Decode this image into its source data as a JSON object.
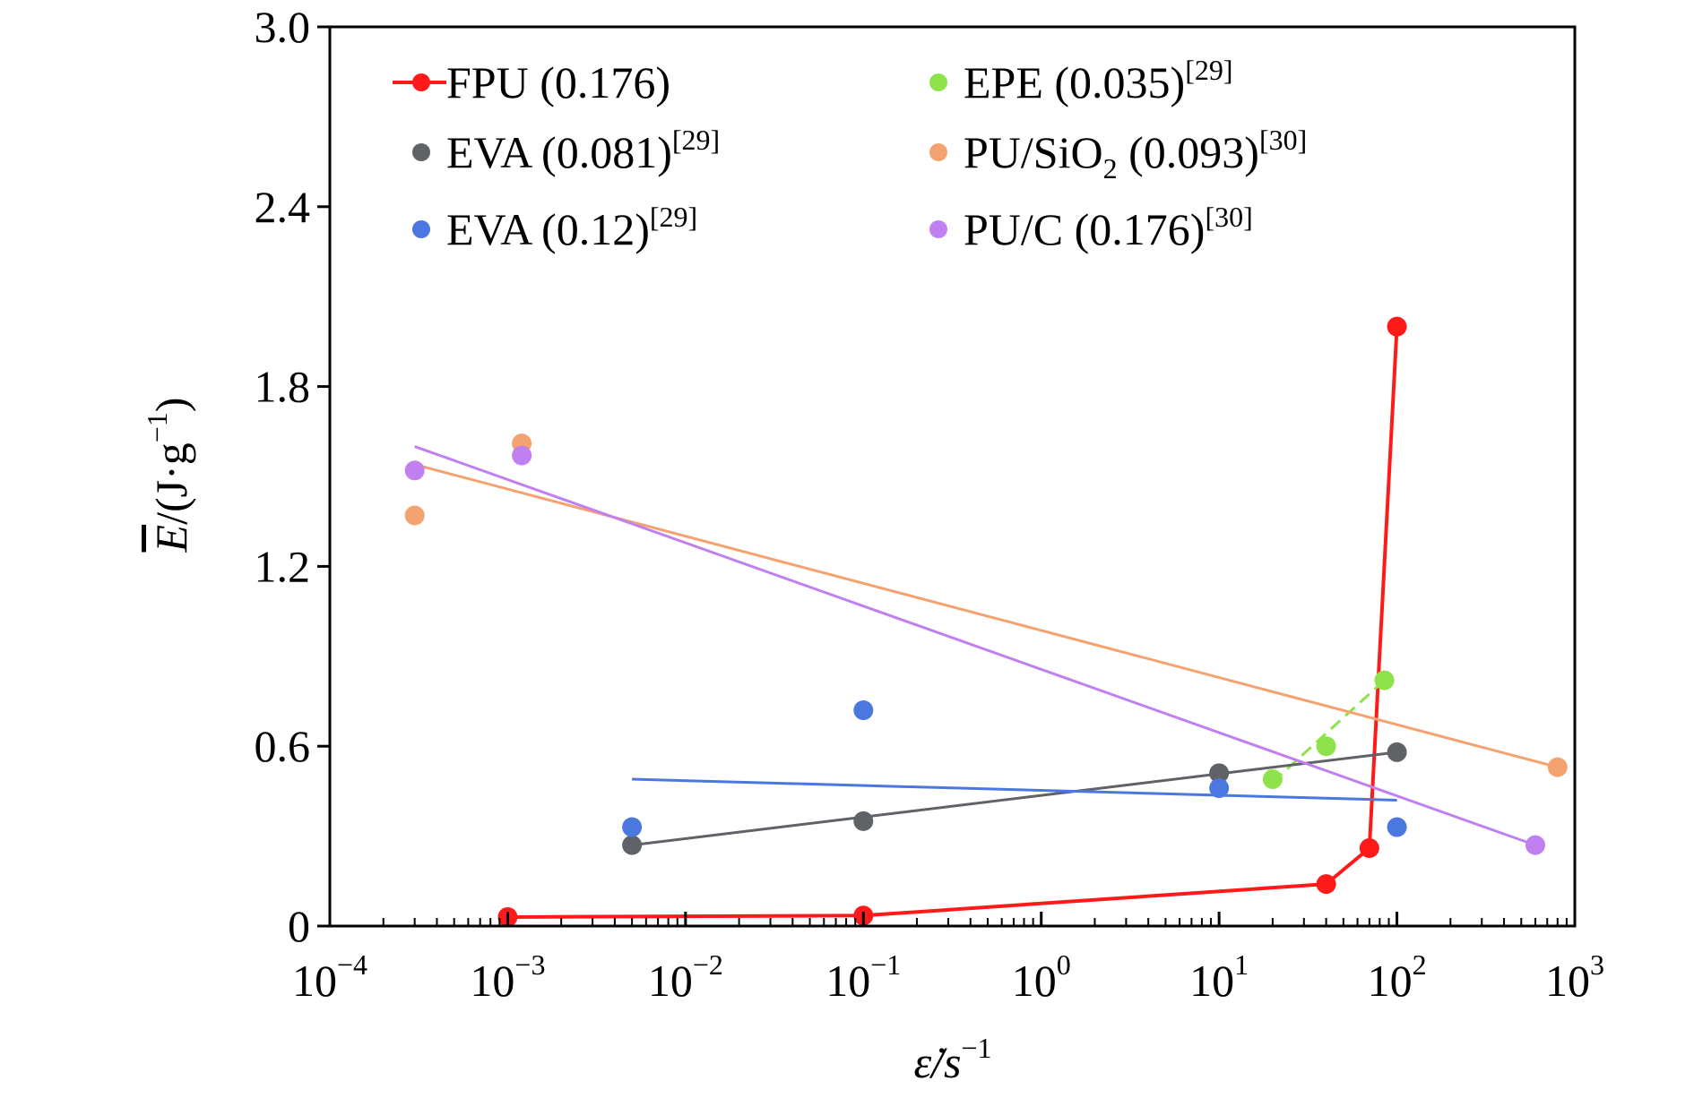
{
  "chart_data": {
    "type": "scatter",
    "title": "",
    "xlabel": {
      "main": "ε̇/s",
      "sup": "−1"
    },
    "ylabel": {
      "main": "E",
      "rest": "/(J·g",
      "sup": "−1",
      "close": ")"
    },
    "xscale": "log",
    "xlim": [
      0.0001,
      1000
    ],
    "ylim": [
      0,
      3.0
    ],
    "x_ticks": [
      {
        "value": 0.0001,
        "base": "10",
        "exp": "−4"
      },
      {
        "value": 0.001,
        "base": "10",
        "exp": "−3"
      },
      {
        "value": 0.01,
        "base": "10",
        "exp": "−2"
      },
      {
        "value": 0.1,
        "base": "10",
        "exp": "−1"
      },
      {
        "value": 1,
        "base": "10",
        "exp": "0"
      },
      {
        "value": 10,
        "base": "10",
        "exp": "1"
      },
      {
        "value": 100,
        "base": "10",
        "exp": "2"
      },
      {
        "value": 1000,
        "base": "10",
        "exp": "3"
      }
    ],
    "y_ticks": [
      {
        "value": 0,
        "label": "0"
      },
      {
        "value": 0.6,
        "label": "0.6"
      },
      {
        "value": 1.2,
        "label": "1.2"
      },
      {
        "value": 1.8,
        "label": "1.8"
      },
      {
        "value": 2.4,
        "label": "2.4"
      },
      {
        "value": 3.0,
        "label": "3.0"
      }
    ],
    "grid": false,
    "legend_position": "top",
    "series": [
      {
        "name": "FPU (0.176)",
        "name_sup": "",
        "color": "#ff1a1a",
        "points": [
          [
            0.001,
            0.03
          ],
          [
            0.1,
            0.035
          ],
          [
            40,
            0.14
          ],
          [
            70,
            0.26
          ],
          [
            100,
            2.0
          ]
        ],
        "line": {
          "kind": "connect",
          "dash": false,
          "width": 4
        }
      },
      {
        "name": "EPE (0.035)",
        "name_sup": "[29]",
        "color": "#8fe34a",
        "points": [
          [
            20,
            0.49
          ],
          [
            40,
            0.6
          ],
          [
            85,
            0.82
          ]
        ],
        "line": {
          "kind": "fit",
          "from": [
            20,
            0.48
          ],
          "to": [
            85,
            0.82
          ],
          "dash": true,
          "width": 3
        }
      },
      {
        "name": "EVA (0.081)",
        "name_sup": "[29]",
        "color": "#5f6266",
        "points": [
          [
            0.005,
            0.27
          ],
          [
            0.1,
            0.35
          ],
          [
            10,
            0.51
          ],
          [
            100,
            0.58
          ]
        ],
        "line": {
          "kind": "fit",
          "from": [
            0.005,
            0.27
          ],
          "to": [
            100,
            0.58
          ],
          "dash": false,
          "width": 3
        }
      },
      {
        "name": "PU/SiO",
        "name_sub": "2",
        "name_rest": " (0.093)",
        "name_sup": "[30]",
        "color": "#f4a370",
        "points": [
          [
            0.0003,
            1.37
          ],
          [
            0.0012,
            1.61
          ],
          [
            800,
            0.53
          ]
        ],
        "line": {
          "kind": "fit",
          "from": [
            0.0003,
            1.54
          ],
          "to": [
            800,
            0.53
          ],
          "dash": false,
          "width": 3
        }
      },
      {
        "name": "EVA (0.12)",
        "name_sup": "[29]",
        "color": "#4a78e0",
        "points": [
          [
            0.005,
            0.33
          ],
          [
            0.1,
            0.72
          ],
          [
            10,
            0.46
          ],
          [
            100,
            0.33
          ]
        ],
        "line": {
          "kind": "fit",
          "from": [
            0.005,
            0.49
          ],
          "to": [
            100,
            0.42
          ],
          "dash": false,
          "width": 3
        }
      },
      {
        "name": "PU/C (0.176)",
        "name_sup": "[30]",
        "color": "#c080f0",
        "points": [
          [
            0.0003,
            1.52
          ],
          [
            0.0012,
            1.57
          ],
          [
            600,
            0.27
          ]
        ],
        "line": {
          "kind": "fit",
          "from": [
            0.0003,
            1.6
          ],
          "to": [
            600,
            0.27
          ],
          "dash": false,
          "width": 3
        }
      }
    ]
  }
}
